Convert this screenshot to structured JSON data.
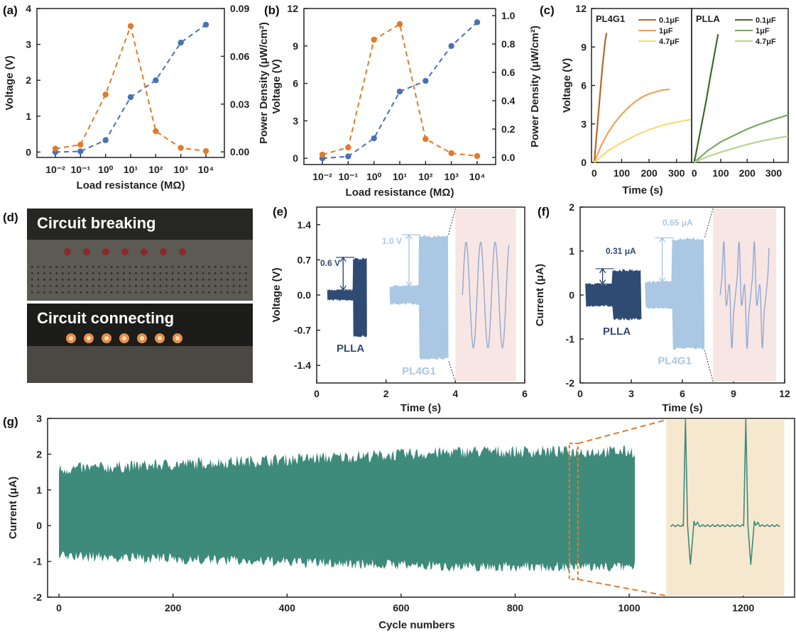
{
  "colors": {
    "blue": "#4a72b0",
    "orange": "#e07b2a",
    "green": "#3e8a7b",
    "navy": "#2f4a73",
    "lightblue": "#aac7e3",
    "pink": "#f7e6e4",
    "beige": "#f6e8cf"
  },
  "panels": {
    "a": {
      "label": "(a)"
    },
    "b": {
      "label": "(b)"
    },
    "c": {
      "label": "(c)"
    },
    "d": {
      "label": "(d)",
      "photo_top": "Circuit breaking",
      "photo_bottom": "Circuit connecting"
    },
    "e": {
      "label": "(e)"
    },
    "f": {
      "label": "(f)"
    },
    "g": {
      "label": "(g)"
    }
  },
  "chart_data": [
    {
      "id": "a",
      "type": "line",
      "xlabel": "Load resistance (MΩ)",
      "ylabel_left": "Voltage (V)",
      "ylabel_right": "Power Density (μW/cm²)",
      "x_scale": "log",
      "x": [
        0.01,
        0.1,
        1,
        10,
        100,
        1000,
        10000
      ],
      "x_ticklabels": [
        "10⁻²",
        "10⁻¹",
        "10⁰",
        "10¹",
        "10²",
        "10³",
        "10⁴"
      ],
      "ylim_left": [
        -0.15,
        4
      ],
      "yticks_left": [
        "0",
        "1",
        "2",
        "3",
        "4"
      ],
      "ylim_right": [
        -0.0035,
        0.09
      ],
      "yticks_right": [
        "0.00",
        "0.03",
        "0.06",
        "0.09"
      ],
      "series": [
        {
          "axis": "left",
          "color": "blue",
          "values": [
            0.0,
            0.02,
            0.33,
            1.53,
            2.0,
            3.05,
            3.55
          ]
        },
        {
          "axis": "right",
          "color": "orange",
          "values": [
            0.002,
            0.0045,
            0.036,
            0.079,
            0.013,
            0.0025,
            0.0005
          ]
        }
      ]
    },
    {
      "id": "b",
      "type": "line",
      "xlabel": "Load resistance (MΩ)",
      "ylabel_left": "Voltage (V)",
      "ylabel_right": "Power Density (μW/cm²)",
      "x_scale": "log",
      "x": [
        0.01,
        0.1,
        1,
        10,
        100,
        1000,
        10000
      ],
      "x_ticklabels": [
        "10⁻²",
        "10⁻¹",
        "10⁰",
        "10¹",
        "10²",
        "10³",
        "10⁴"
      ],
      "ylim_left": [
        -0.5,
        12
      ],
      "yticks_left": [
        "0",
        "3",
        "6",
        "9",
        "12"
      ],
      "ylim_right": [
        -0.05,
        1.05
      ],
      "yticks_right": [
        "0.0",
        "0.2",
        "0.4",
        "0.6",
        "0.8",
        "1.0"
      ],
      "series": [
        {
          "axis": "left",
          "color": "blue",
          "values": [
            0.0,
            0.15,
            1.6,
            5.35,
            6.2,
            9.0,
            10.9
          ]
        },
        {
          "axis": "right",
          "color": "orange",
          "values": [
            0.02,
            0.07,
            0.83,
            0.94,
            0.13,
            0.03,
            0.01
          ]
        }
      ]
    },
    {
      "id": "c",
      "type": "line",
      "xlabel": "Time (s)",
      "ylabel": "Voltage (V)",
      "ylim": [
        0,
        12
      ],
      "yticks": [
        "0",
        "3",
        "6",
        "9",
        "12"
      ],
      "sub_panels": [
        {
          "title": "PL4G1",
          "xlim": [
            -10,
            355
          ],
          "xticks": [
            "0",
            "100",
            "200",
            "300"
          ],
          "series": [
            {
              "name": "0.1μF",
              "color": "#b8672c",
              "x": [
                0,
                10,
                20,
                30,
                40,
                45
              ],
              "y": [
                0,
                2.5,
                5,
                7.5,
                9.5,
                10.1
              ]
            },
            {
              "name": "1μF",
              "color": "#f0a258",
              "x": [
                0,
                25,
                50,
                75,
                100,
                125,
                150,
                175,
                200,
                225,
                250,
                275
              ],
              "y": [
                0,
                1.3,
                2.3,
                3.1,
                3.75,
                4.3,
                4.75,
                5.1,
                5.35,
                5.5,
                5.65,
                5.7
              ]
            },
            {
              "name": "4.7μF",
              "color": "#f3dc73",
              "x": [
                0,
                50,
                100,
                150,
                200,
                250,
                300,
                355
              ],
              "y": [
                0,
                0.9,
                1.55,
                2.1,
                2.55,
                2.9,
                3.15,
                3.35
              ]
            }
          ]
        },
        {
          "title": "PLLA",
          "xlim": [
            -10,
            355
          ],
          "xticks": [
            "0",
            "100",
            "200",
            "300"
          ],
          "series": [
            {
              "name": "0.1μF",
              "color": "#3e6b2b",
              "x": [
                0,
                15,
                30,
                45,
                60,
                75,
                90
              ],
              "y": [
                0,
                1.6,
                3.2,
                4.8,
                6.6,
                8.3,
                10.0
              ]
            },
            {
              "name": "1μF",
              "color": "#7aa763",
              "x": [
                0,
                50,
                100,
                150,
                200,
                250,
                300,
                355
              ],
              "y": [
                0,
                0.9,
                1.6,
                2.1,
                2.6,
                3.0,
                3.35,
                3.7
              ]
            },
            {
              "name": "4.7μF",
              "color": "#b7d48c",
              "x": [
                0,
                50,
                100,
                150,
                200,
                250,
                300,
                355
              ],
              "y": [
                0,
                0.45,
                0.8,
                1.1,
                1.4,
                1.65,
                1.85,
                2.05
              ]
            }
          ]
        }
      ]
    },
    {
      "id": "e",
      "type": "line",
      "xlabel": "Time (s)",
      "ylabel": "Voltage (V)",
      "xlim": [
        0,
        6
      ],
      "xticks": [
        "0",
        "2",
        "4",
        "6"
      ],
      "ylim": [
        -1.75,
        1.75
      ],
      "yticks": [
        "1.4",
        "0.7",
        "0.0",
        "-0.7",
        "-1.4"
      ],
      "series": [
        {
          "name": "PLLA",
          "x_range": [
            0.3,
            1.45
          ],
          "baseline_amplitude": 0.1,
          "switch_x": 1.05,
          "amplitude": [
            0.75,
            -0.85
          ]
        },
        {
          "name": "PL4G1",
          "x_range": [
            2.1,
            3.8
          ],
          "baseline_amplitude": 0.18,
          "switch_x": 2.95,
          "amplitude": [
            1.2,
            -1.3
          ]
        }
      ],
      "annotations": [
        "0.6 V",
        "1.0 V"
      ]
    },
    {
      "id": "f",
      "type": "line",
      "xlabel": "Time (s)",
      "ylabel": "Current (μA)",
      "xlim": [
        0,
        12
      ],
      "xticks": [
        "0",
        "3",
        "6",
        "9",
        "12"
      ],
      "ylim": [
        -2,
        2
      ],
      "yticks": [
        "2",
        "1",
        "0",
        "-1",
        "-2"
      ],
      "series": [
        {
          "name": "PLLA",
          "x_range": [
            0.3,
            3.6
          ],
          "baseline_amplitude": 0.25,
          "switch_x": 1.9,
          "amplitude": [
            0.6,
            -0.58
          ]
        },
        {
          "name": "PL4G1",
          "x_range": [
            3.8,
            7.3
          ],
          "baseline_amplitude": 0.3,
          "switch_x": 5.4,
          "amplitude": [
            1.3,
            -1.25
          ]
        }
      ],
      "annotations": [
        "0.31 μA",
        "0.65 μA"
      ]
    },
    {
      "id": "g",
      "type": "area",
      "xlabel": "Cycle numbers",
      "ylabel": "Current (μA)",
      "xlim": [
        -20,
        1290
      ],
      "xticks": [
        "0",
        "200",
        "400",
        "600",
        "800",
        "1000",
        "1200"
      ],
      "ylim": [
        -2,
        3
      ],
      "yticks": [
        "3",
        "2",
        "1",
        "0",
        "-1",
        "-2"
      ],
      "series": [
        {
          "x_range": [
            0,
            1010
          ],
          "upper_mean": [
            1.5,
            2.0
          ],
          "lower_mean": [
            -0.8,
            -1.1
          ]
        }
      ],
      "zoom_region": [
        895,
        910
      ]
    }
  ]
}
